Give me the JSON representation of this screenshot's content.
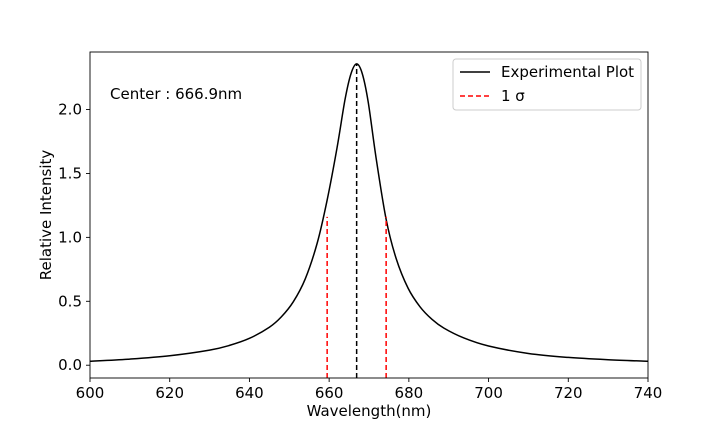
{
  "chart_data": {
    "type": "line",
    "xlabel": "Wavelength(nm)",
    "ylabel": "Relative Intensity",
    "xlim": [
      600,
      740
    ],
    "ylim": [
      -0.1,
      2.45
    ],
    "x_ticks": [
      600,
      620,
      640,
      660,
      680,
      700,
      720,
      740
    ],
    "y_ticks": [
      0.0,
      0.5,
      1.0,
      1.5,
      2.0
    ],
    "x_tick_labels": [
      "600",
      "620",
      "640",
      "660",
      "680",
      "700",
      "720",
      "740"
    ],
    "y_tick_labels": [
      "0.0",
      "0.5",
      "1.0",
      "1.5",
      "2.0"
    ],
    "annotation": "Center : 666.9nm",
    "grid": false,
    "legend_position": "top-right",
    "series": [
      {
        "name": "Experimental Plot",
        "color": "#000000",
        "style": "solid",
        "x": [
          600,
          610,
          620,
          630,
          635,
          640,
          645,
          648,
          651,
          654,
          657,
          659.5,
          662,
          664,
          665.5,
          666.9,
          668.3,
          669.8,
          671.8,
          674.3,
          676.8,
          679.8,
          682.8,
          685.8,
          688.8,
          693.8,
          700,
          710,
          720,
          730,
          740
        ],
        "y": [
          0.031,
          0.048,
          0.074,
          0.118,
          0.155,
          0.21,
          0.297,
          0.378,
          0.496,
          0.675,
          0.955,
          1.292,
          1.704,
          2.081,
          2.282,
          2.357,
          2.282,
          2.059,
          1.617,
          1.141,
          0.836,
          0.603,
          0.457,
          0.359,
          0.29,
          0.213,
          0.15,
          0.092,
          0.061,
          0.043,
          0.031
        ]
      },
      {
        "name": "1 σ",
        "color": "#ff0000",
        "style": "dashed",
        "segments": [
          {
            "x": [
              659.5,
              659.5
            ],
            "y": [
              -0.1,
              1.16
            ]
          },
          {
            "x": [
              674.3,
              674.3
            ],
            "y": [
              -0.1,
              1.16
            ]
          }
        ]
      }
    ],
    "center_line": {
      "x": 666.9,
      "y": [
        -0.1,
        2.357
      ],
      "color": "#000000",
      "style": "dashed"
    }
  }
}
